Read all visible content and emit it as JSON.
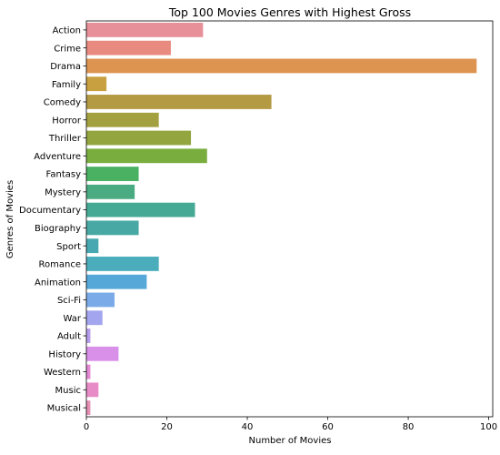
{
  "chart_data": {
    "type": "bar",
    "orientation": "horizontal",
    "title": "Top 100 Movies Genres with Highest Gross",
    "xlabel": "Number of Movies",
    "ylabel": "Genres of Movies",
    "xlim": [
      0,
      101
    ],
    "xticks": [
      0,
      20,
      40,
      60,
      80,
      100
    ],
    "grid": false,
    "categories": [
      "Action",
      "Crime",
      "Drama",
      "Family",
      "Comedy",
      "Horror",
      "Thriller",
      "Adventure",
      "Fantasy",
      "Mystery",
      "Documentary",
      "Biography",
      "Sport",
      "Romance",
      "Animation",
      "Sci-Fi",
      "War",
      "Adult",
      "History",
      "Western",
      "Music",
      "Musical"
    ],
    "values": [
      29,
      21,
      97,
      5,
      46,
      18,
      26,
      30,
      13,
      12,
      27,
      13,
      3,
      18,
      15,
      7,
      4,
      1,
      8,
      1,
      3,
      1
    ],
    "colors": [
      "#e8909a",
      "#e88a80",
      "#dd9450",
      "#c8a040",
      "#b39a43",
      "#a3a040",
      "#92a53e",
      "#79ae3f",
      "#49b161",
      "#4aaa82",
      "#45a995",
      "#47a8a4",
      "#48a8b1",
      "#4badbc",
      "#55a8d8",
      "#7aabe8",
      "#a3a5ee",
      "#b79ced",
      "#d890e8",
      "#e689d5",
      "#e88cc8",
      "#e690b5"
    ]
  }
}
